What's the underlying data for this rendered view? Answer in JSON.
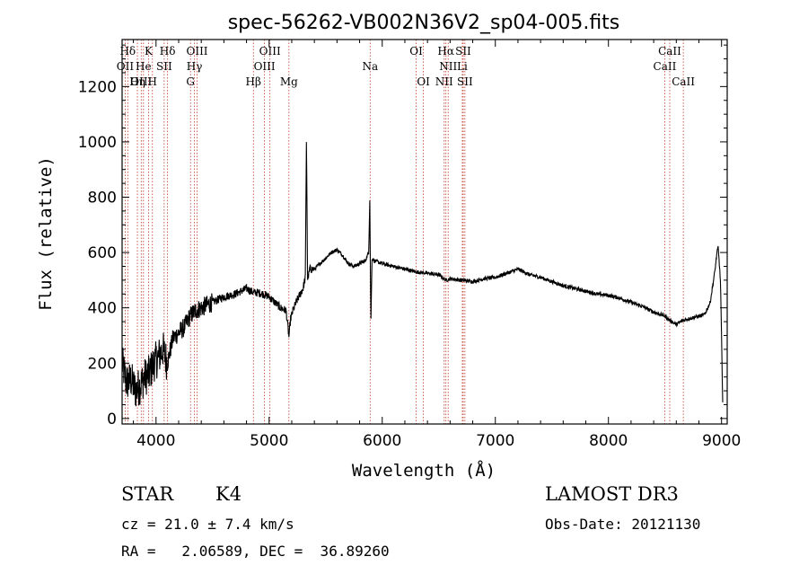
{
  "chart_data": {
    "type": "line",
    "title": "spec-56262-VB002N36V2_sp04-005.fits",
    "xlabel": "Wavelength (Å)",
    "ylabel": "Flux (relative)",
    "xlim": [
      3700,
      9050
    ],
    "ylim": [
      -20,
      1370
    ],
    "xticks": [
      4000,
      5000,
      6000,
      7000,
      8000,
      9000
    ],
    "xtick_labels": [
      "4000",
      "5000",
      "6000",
      "7000",
      "8000",
      "9000"
    ],
    "yticks": [
      0,
      200,
      400,
      600,
      800,
      1000,
      1200
    ],
    "ytick_labels": [
      "0",
      "200",
      "400",
      "600",
      "800",
      "1000",
      "1200"
    ],
    "grid": false,
    "spectrum_anchors": {
      "x": [
        3700,
        3740,
        3780,
        3820,
        3860,
        3900,
        3940,
        3980,
        4020,
        4060,
        4100,
        4150,
        4200,
        4250,
        4300,
        4350,
        4400,
        4450,
        4500,
        4600,
        4700,
        4800,
        4861,
        4900,
        4950,
        5000,
        5050,
        5100,
        5150,
        5175,
        5190,
        5210,
        5250,
        5300,
        5320,
        5330,
        5340,
        5360,
        5400,
        5450,
        5500,
        5550,
        5600,
        5650,
        5700,
        5750,
        5800,
        5850,
        5880,
        5890,
        5895,
        5900,
        5910,
        5930,
        6000,
        6100,
        6200,
        6300,
        6400,
        6500,
        6563,
        6600,
        6700,
        6800,
        6900,
        7000,
        7100,
        7200,
        7300,
        7400,
        7500,
        7600,
        7700,
        7800,
        7900,
        8000,
        8100,
        8200,
        8300,
        8400,
        8500,
        8542,
        8600,
        8662,
        8700,
        8800,
        8850,
        8900,
        8940,
        8960,
        8970,
        8990,
        9000,
        9010
      ],
      "y": [
        200,
        130,
        140,
        100,
        120,
        150,
        160,
        200,
        220,
        250,
        200,
        290,
        310,
        330,
        370,
        390,
        400,
        410,
        420,
        440,
        450,
        470,
        455,
        455,
        450,
        440,
        420,
        400,
        390,
        295,
        360,
        390,
        430,
        470,
        510,
        1000,
        500,
        540,
        540,
        560,
        580,
        600,
        610,
        590,
        560,
        550,
        560,
        570,
        600,
        790,
        560,
        360,
        580,
        570,
        560,
        550,
        540,
        530,
        525,
        520,
        500,
        505,
        500,
        495,
        505,
        510,
        525,
        540,
        520,
        510,
        495,
        480,
        470,
        460,
        450,
        445,
        435,
        420,
        405,
        385,
        370,
        355,
        340,
        355,
        360,
        370,
        375,
        420,
        530,
        600,
        620,
        500,
        300,
        60
      ]
    },
    "spectral_lines": [
      {
        "label": "Hδ",
        "wavelength": 3750,
        "row": 0
      },
      {
        "label": "K",
        "wavelength": 3934,
        "row": 0
      },
      {
        "label": "Hδ",
        "wavelength": 4102,
        "row": 0
      },
      {
        "label": "OIII",
        "wavelength": 4363,
        "row": 0
      },
      {
        "label": "OIII",
        "wavelength": 5007,
        "row": 0
      },
      {
        "label": "OI",
        "wavelength": 6300,
        "row": 0
      },
      {
        "label": "Hα",
        "wavelength": 6563,
        "row": 0
      },
      {
        "label": "SII",
        "wavelength": 6716,
        "row": 0
      },
      {
        "label": "CaII",
        "wavelength": 8542,
        "row": 0
      },
      {
        "label": "OII",
        "wavelength": 3727,
        "row": 1
      },
      {
        "label": "He",
        "wavelength": 3889,
        "row": 1
      },
      {
        "label": "SII",
        "wavelength": 4072,
        "row": 1
      },
      {
        "label": "Hγ",
        "wavelength": 4340,
        "row": 1
      },
      {
        "label": "OIII",
        "wavelength": 4959,
        "row": 1
      },
      {
        "label": "Na",
        "wavelength": 5893,
        "row": 1
      },
      {
        "label": "NII",
        "wavelength": 6583,
        "row": 1
      },
      {
        "label": "Li",
        "wavelength": 6708,
        "row": 1
      },
      {
        "label": "CaII",
        "wavelength": 8498,
        "row": 1
      },
      {
        "label": "OIII",
        "wavelength": 3869,
        "row": 2
      },
      {
        "label": "Hη",
        "wavelength": 3835,
        "row": 2
      },
      {
        "label": "H",
        "wavelength": 3968,
        "row": 2
      },
      {
        "label": "G",
        "wavelength": 4305,
        "row": 2
      },
      {
        "label": "Hβ",
        "wavelength": 4861,
        "row": 2
      },
      {
        "label": "Mg",
        "wavelength": 5175,
        "row": 2
      },
      {
        "label": "OI",
        "wavelength": 6364,
        "row": 2
      },
      {
        "label": "NII",
        "wavelength": 6548,
        "row": 2
      },
      {
        "label": "SII",
        "wavelength": 6731,
        "row": 2
      },
      {
        "label": "CaII",
        "wavelength": 8662,
        "row": 2
      }
    ]
  },
  "info": {
    "object_class": "STAR",
    "subclass": "K4",
    "survey": "LAMOST DR3",
    "cz": "cz = 21.0 ± 7.4 km/s",
    "obs_date": "Obs-Date: 20121130",
    "coords": "RA =   2.06589, DEC =  36.89260"
  },
  "colors": {
    "spectrum": "#000000",
    "line_marker": "#c0392b",
    "background": "#ffffff"
  }
}
